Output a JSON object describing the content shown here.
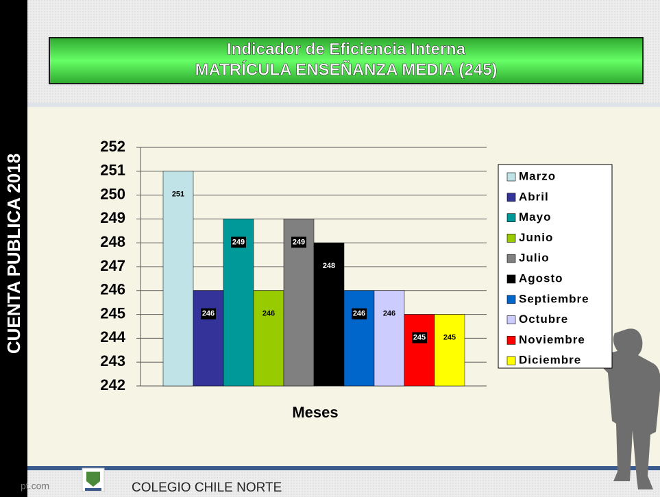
{
  "side_text": "CUENTA PUBLICA 2018",
  "footer": {
    "site": "pt.com",
    "school": "COLEGIO CHILE NORTE"
  },
  "chart_data": {
    "type": "bar",
    "title": "Indicador de Eficiencia Interna",
    "subtitle": "MATRÍCULA ENSEÑANZA MEDIA (245)",
    "x_label": "Meses",
    "categories": [
      "Marzo",
      "Abril",
      "Mayo",
      "Junio",
      "Julio",
      "Agosto",
      "Septiembre",
      "Octubre",
      "Noviembre",
      "Diciembre"
    ],
    "values": [
      251,
      246,
      249,
      246,
      249,
      248,
      246,
      246,
      245,
      245
    ],
    "colors": [
      "#bfe3e6",
      "#333399",
      "#009999",
      "#99cc00",
      "#808080",
      "#000000",
      "#0066cc",
      "#ccccff",
      "#ff0000",
      "#ffff00"
    ],
    "ylim": [
      242,
      252
    ],
    "yticks": [
      242,
      243,
      244,
      245,
      246,
      247,
      248,
      249,
      250,
      251,
      252
    ],
    "grid": true,
    "legend": "right"
  }
}
